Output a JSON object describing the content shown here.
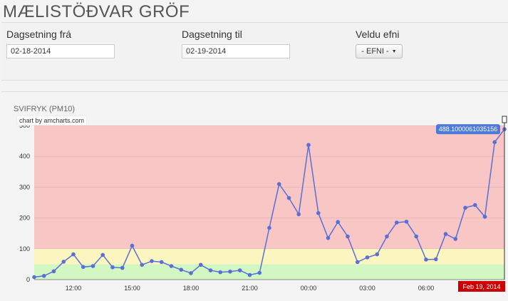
{
  "page": {
    "title": "MÆLISTÖÐVAR GRÖF"
  },
  "filters": {
    "date_from_label": "Dagsetning frá",
    "date_from_value": "02-18-2014",
    "date_to_label": "Dagsetning til",
    "date_to_value": "02-19-2014",
    "substance_label": "Veldu efni",
    "substance_button": "- EFNI -"
  },
  "chart_panel": {
    "title": "SVIFRYK (PM10)",
    "credit": "chart by amcharts.com",
    "balloon": "488.1000061035156",
    "cursor_date": "Feb 19, 2014"
  },
  "colors": {
    "line": "#5a6fd6",
    "band_high": "#f9c6c6",
    "band_mid": "#fbf6c0",
    "band_low": "#d3f7c3",
    "balloon": "#4c7ad8",
    "cursor_date_bg": "#cc0000"
  },
  "chart_data": {
    "type": "line",
    "title": "SVIFRYK (PM10)",
    "xlabel": "",
    "ylabel": "",
    "ylim": [
      0,
      500
    ],
    "y_ticks": [
      0,
      100,
      200,
      300,
      400,
      500
    ],
    "x_ticks": [
      "12:00",
      "15:00",
      "18:00",
      "21:00",
      "00:00",
      "03:00",
      "06:00"
    ],
    "x_start": "2014-02-18 10:00",
    "x_interval_minutes": 30,
    "bands": [
      {
        "from": 0,
        "to": 50,
        "color": "#d3f7c3"
      },
      {
        "from": 50,
        "to": 100,
        "color": "#fbf6c0"
      },
      {
        "from": 100,
        "to": 500,
        "color": "#f9c6c6"
      }
    ],
    "values": [
      8,
      12,
      27,
      58,
      82,
      41,
      44,
      80,
      40,
      38,
      110,
      48,
      60,
      57,
      44,
      32,
      21,
      48,
      30,
      24,
      26,
      30,
      15,
      22,
      168,
      310,
      265,
      212,
      437,
      216,
      135,
      187,
      140,
      57,
      72,
      82,
      140,
      185,
      188,
      140,
      65,
      66,
      148,
      132,
      233,
      242,
      204,
      446,
      488
    ]
  }
}
